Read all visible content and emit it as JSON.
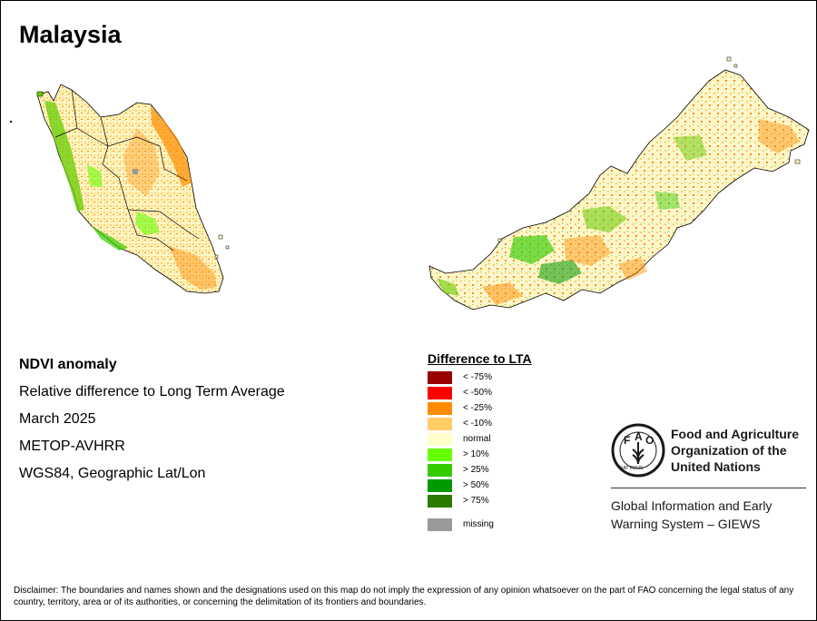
{
  "map": {
    "title": "Malaysia",
    "regions": [
      "Peninsular Malaysia",
      "Sarawak and Sabah (Borneo)"
    ]
  },
  "info": {
    "line1": "NDVI anomaly",
    "line2": "Relative difference to Long Term Average",
    "line3": "March 2025",
    "line4": "METOP-AVHRR",
    "line5": "WGS84, Geographic Lat/Lon"
  },
  "legend": {
    "title": "Difference to LTA",
    "items": [
      {
        "label": "< -75%",
        "color": "#990000"
      },
      {
        "label": "< -50%",
        "color": "#ff0000"
      },
      {
        "label": "< -25%",
        "color": "#ff8c00"
      },
      {
        "label": "< -10%",
        "color": "#ffcc66"
      },
      {
        "label": "normal",
        "color": "#ffffcc"
      },
      {
        "label": "> 10%",
        "color": "#66ff00"
      },
      {
        "label": "> 25%",
        "color": "#33cc00"
      },
      {
        "label": "> 50%",
        "color": "#009900"
      },
      {
        "label": "> 75%",
        "color": "#2d7a00"
      }
    ],
    "missing": {
      "label": "missing",
      "color": "#999999"
    }
  },
  "logo": {
    "name_line1": "Food and Agriculture",
    "name_line2": "Organization of the",
    "name_line3": "United Nations",
    "giews_line1": "Global Information and Early",
    "giews_line2": "Warning System – GIEWS",
    "seal_text": "FIAT PANIS"
  },
  "disclaimer": "Disclaimer: The boundaries and names shown and the designations used on this map do not imply the expression of any opinion whatsoever on the part of FAO concerning the legal status of any country, territory, area or of its authorities, or concerning the delimitation of its frontiers and boundaries."
}
